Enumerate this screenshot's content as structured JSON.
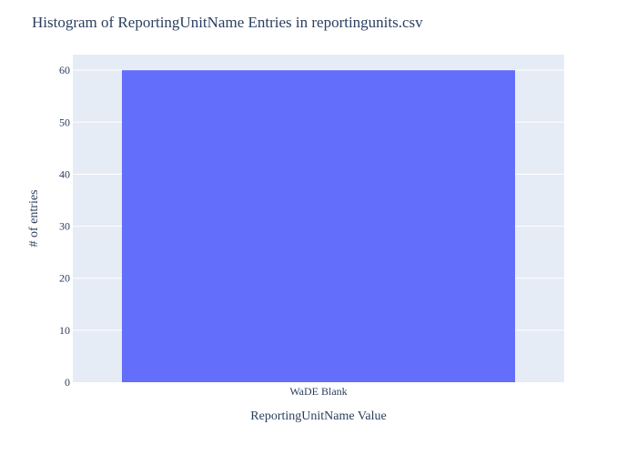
{
  "chart_data": {
    "type": "bar",
    "title": "Histogram of ReportingUnitName Entries in reportingunits.csv",
    "xlabel": "ReportingUnitName Value",
    "ylabel": "# of entries",
    "categories": [
      "WaDE Blank"
    ],
    "values": [
      60
    ],
    "ylim": [
      0,
      63
    ],
    "yticks": [
      0,
      10,
      20,
      30,
      40,
      50,
      60
    ],
    "grid": true,
    "legend": false,
    "colors": {
      "bar": "#636efa",
      "plot_background": "#e5ecf6",
      "gridline": "#ffffff",
      "text": "#2a3f5f"
    }
  }
}
